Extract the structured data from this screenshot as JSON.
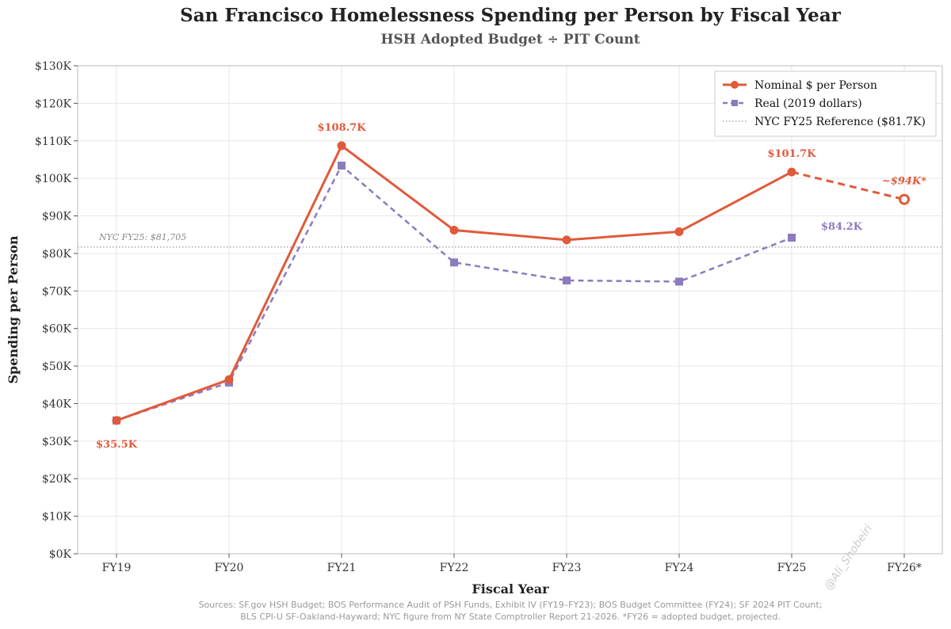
{
  "chart_data": {
    "type": "line",
    "title": "San Francisco Homelessness Spending per Person by Fiscal Year",
    "subtitle": "HSH Adopted Budget ÷ PIT Count",
    "xlabel": "Fiscal Year",
    "ylabel": "Spending per Person",
    "categories": [
      "FY19",
      "FY20",
      "FY21",
      "FY22",
      "FY23",
      "FY24",
      "FY25",
      "FY26*"
    ],
    "ylim": [
      0,
      130000
    ],
    "yticks": [
      0,
      10000,
      20000,
      30000,
      40000,
      50000,
      60000,
      70000,
      80000,
      90000,
      100000,
      110000,
      120000,
      130000
    ],
    "ytick_labels": [
      "$0K",
      "$10K",
      "$20K",
      "$30K",
      "$40K",
      "$50K",
      "$60K",
      "$70K",
      "$80K",
      "$90K",
      "$100K",
      "$110K",
      "$120K",
      "$130K"
    ],
    "grid": true,
    "legend_position": "top-right",
    "series": [
      {
        "name": "Nominal $ per Person",
        "color": "#e05a3a",
        "style": "solid",
        "marker": "circle",
        "values": [
          35500,
          46400,
          108700,
          86200,
          83600,
          85800,
          101700,
          94400
        ],
        "projected_from_index": 6
      },
      {
        "name": "Real (2019 dollars)",
        "color": "#8c7bbd",
        "style": "dashed",
        "marker": "square",
        "values": [
          35500,
          45600,
          103400,
          77600,
          72800,
          72500,
          84200,
          null
        ]
      }
    ],
    "reference": {
      "name": "NYC FY25 Reference ($81.7K)",
      "value": 81705,
      "label": "NYC FY25: $81,705",
      "color": "#888888"
    },
    "annotations": [
      {
        "text": "$35.5K",
        "series": 0,
        "index": 0,
        "placement": "below",
        "color": "#e05a3a",
        "italic": false
      },
      {
        "text": "$108.7K",
        "series": 0,
        "index": 2,
        "placement": "above",
        "color": "#e05a3a",
        "italic": false
      },
      {
        "text": "$101.7K",
        "series": 0,
        "index": 6,
        "placement": "above",
        "color": "#e05a3a",
        "italic": false
      },
      {
        "text": "~$94K*",
        "series": 0,
        "index": 7,
        "placement": "above",
        "color": "#e05a3a",
        "italic": true
      },
      {
        "text": "$84.2K",
        "series": 1,
        "index": 6,
        "placement": "right",
        "color": "#8c7bbd",
        "italic": false
      }
    ]
  },
  "source_lines": [
    "Sources: SF.gov HSH Budget; BOS Performance Audit of PSH Funds, Exhibit IV (FY19–FY23); BOS Budget Committee (FY24); SF 2024 PIT Count;",
    "BLS CPI-U SF-Oakland-Hayward; NYC figure from NY State Comptroller Report 21-2026.  *FY26 = adopted budget, projected."
  ],
  "watermark": "@Ali_Shobeiri"
}
